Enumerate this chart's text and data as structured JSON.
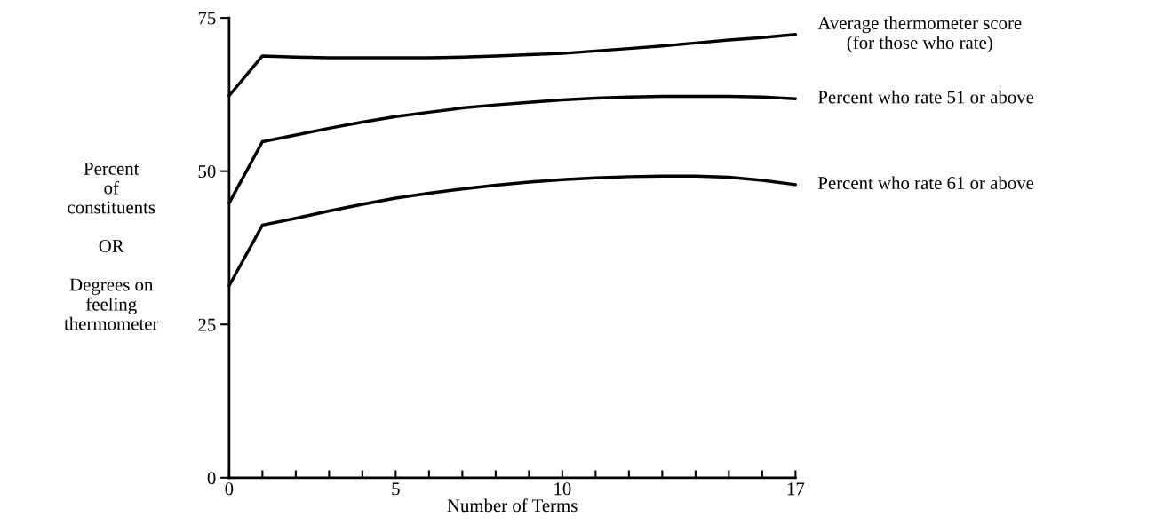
{
  "chart_data": {
    "type": "line",
    "xlabel": "Number of Terms",
    "ylabel": "Percent\nof\nconstituents\n\nOR\n\nDegrees on\nfeeling\nthermometer",
    "x": [
      0,
      1,
      2,
      3,
      4,
      5,
      6,
      7,
      8,
      9,
      10,
      11,
      12,
      13,
      14,
      15,
      16,
      17
    ],
    "series": [
      {
        "name": "Average thermometer score\n(for those who rate)",
        "color": "#000000",
        "values": [
          62.3,
          68.8,
          68.6,
          68.5,
          68.5,
          68.5,
          68.5,
          68.6,
          68.8,
          69.0,
          69.2,
          69.6,
          70.0,
          70.4,
          70.9,
          71.4,
          71.8,
          72.3
        ]
      },
      {
        "name": "Percent who rate 51 or above",
        "color": "#000000",
        "values": [
          44.8,
          54.8,
          55.9,
          57.0,
          58.0,
          58.9,
          59.6,
          60.3,
          60.8,
          61.2,
          61.6,
          61.9,
          62.1,
          62.2,
          62.2,
          62.2,
          62.1,
          61.8
        ]
      },
      {
        "name": "Percent who rate 61 or above",
        "color": "#000000",
        "values": [
          31.3,
          41.2,
          42.3,
          43.5,
          44.6,
          45.6,
          46.4,
          47.1,
          47.7,
          48.2,
          48.6,
          48.9,
          49.1,
          49.2,
          49.2,
          49.0,
          48.5,
          47.8
        ]
      }
    ],
    "xlim": [
      0,
      17
    ],
    "ylim": [
      0,
      75
    ],
    "xticks": [
      0,
      {
        "value": 1,
        "label": null
      },
      {
        "value": 2,
        "label": null
      },
      {
        "value": 3,
        "label": null
      },
      {
        "value": 4,
        "label": null
      },
      5,
      {
        "value": 6,
        "label": null
      },
      {
        "value": 7,
        "label": null
      },
      {
        "value": 8,
        "label": null
      },
      {
        "value": 9,
        "label": null
      },
      10,
      {
        "value": 11,
        "label": null
      },
      {
        "value": 12,
        "label": null
      },
      {
        "value": 13,
        "label": null
      },
      {
        "value": 14,
        "label": null
      },
      {
        "value": 15,
        "label": null
      },
      {
        "value": 16,
        "label": null
      },
      17
    ],
    "yticks": [
      0,
      25,
      50,
      75
    ],
    "grid": false,
    "legend": false,
    "marker": "none",
    "line_style": "solid"
  }
}
